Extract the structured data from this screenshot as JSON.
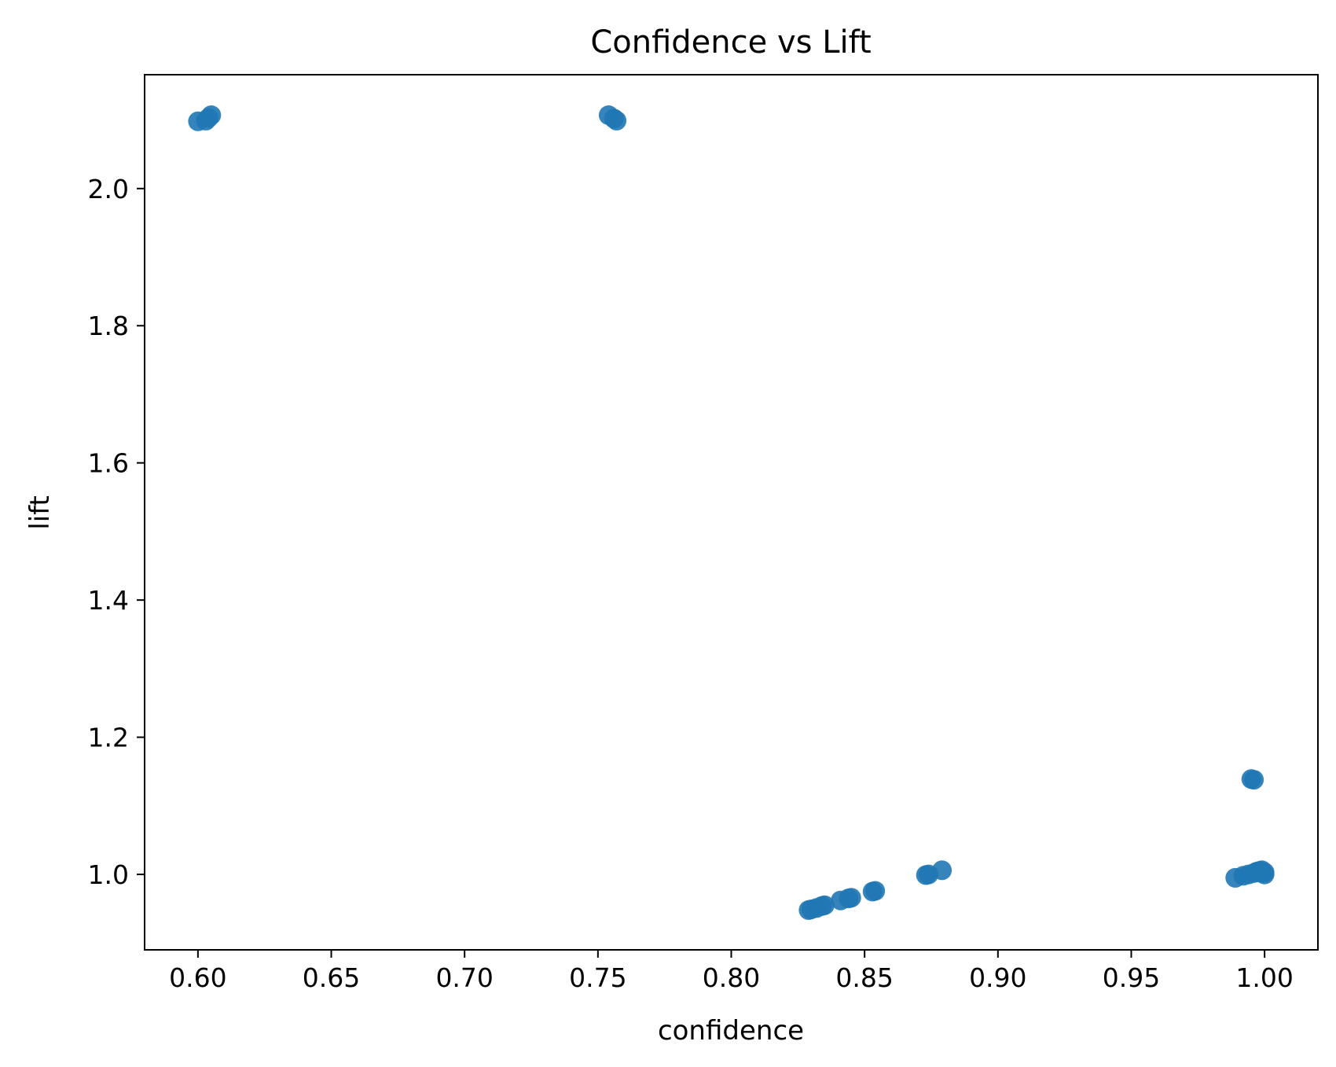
{
  "chart_data": {
    "type": "scatter",
    "title": "Confidence vs Lift",
    "xlabel": "confidence",
    "ylabel": "lift",
    "xlim": [
      0.58,
      1.02
    ],
    "ylim": [
      0.89,
      2.166
    ],
    "xticks": [
      "0.60",
      "0.65",
      "0.70",
      "0.75",
      "0.80",
      "0.85",
      "0.90",
      "0.95",
      "1.00"
    ],
    "yticks": [
      "1.0",
      "1.2",
      "1.4",
      "1.6",
      "1.8",
      "2.0"
    ],
    "grid": false,
    "marker_color": "#1f77b4",
    "series": [
      {
        "points": [
          {
            "x": 0.6,
            "y": 2.098
          },
          {
            "x": 0.603,
            "y": 2.099
          },
          {
            "x": 0.604,
            "y": 2.103
          },
          {
            "x": 0.605,
            "y": 2.107
          },
          {
            "x": 0.754,
            "y": 2.107
          },
          {
            "x": 0.756,
            "y": 2.102
          },
          {
            "x": 0.757,
            "y": 2.099
          },
          {
            "x": 0.829,
            "y": 0.948
          },
          {
            "x": 0.83,
            "y": 0.949
          },
          {
            "x": 0.832,
            "y": 0.951
          },
          {
            "x": 0.834,
            "y": 0.954
          },
          {
            "x": 0.835,
            "y": 0.955
          },
          {
            "x": 0.841,
            "y": 0.962
          },
          {
            "x": 0.844,
            "y": 0.965
          },
          {
            "x": 0.845,
            "y": 0.966
          },
          {
            "x": 0.853,
            "y": 0.975
          },
          {
            "x": 0.854,
            "y": 0.976
          },
          {
            "x": 0.873,
            "y": 0.999
          },
          {
            "x": 0.874,
            "y": 1.0
          },
          {
            "x": 0.879,
            "y": 1.006
          },
          {
            "x": 0.989,
            "y": 0.995
          },
          {
            "x": 0.992,
            "y": 0.998
          },
          {
            "x": 0.994,
            "y": 1.0
          },
          {
            "x": 0.996,
            "y": 1.002
          },
          {
            "x": 0.997,
            "y": 1.004
          },
          {
            "x": 0.998,
            "y": 1.005
          },
          {
            "x": 0.999,
            "y": 1.002
          },
          {
            "x": 0.999,
            "y": 1.006
          },
          {
            "x": 1.0,
            "y": 1.0
          },
          {
            "x": 1.0,
            "y": 1.003
          },
          {
            "x": 0.995,
            "y": 1.139
          },
          {
            "x": 0.996,
            "y": 1.138
          }
        ]
      }
    ]
  }
}
